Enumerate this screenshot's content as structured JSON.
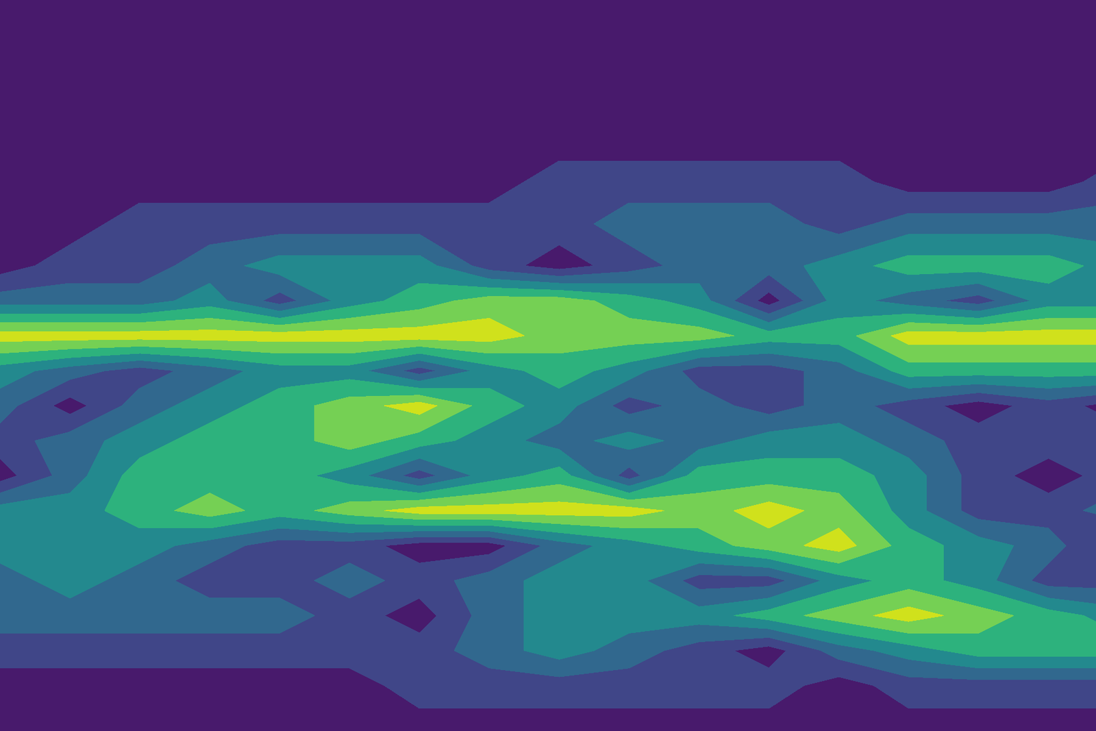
{
  "chart_data": {
    "type": "contourf",
    "tick_labels": false,
    "xlim": [
      0,
      1568
    ],
    "ylim": [
      0,
      1045
    ],
    "levels": [
      0,
      1,
      2,
      3,
      4,
      5,
      6,
      7
    ],
    "colors": [
      "#481a6c",
      "#404688",
      "#31688e",
      "#23898e",
      "#2db27d",
      "#75d054",
      "#d0e11c"
    ],
    "x": [
      0,
      100,
      200,
      300,
      400,
      500,
      600,
      700,
      800,
      900,
      1000,
      1100,
      1200,
      1300,
      1400,
      1500,
      1600
    ],
    "y": [
      1045,
      925,
      845,
      785,
      725,
      665,
      615,
      565,
      515,
      465,
      415,
      365,
      315,
      265,
      215,
      165,
      115,
      65,
      0
    ],
    "cells": [
      [
        0.5,
        0.5,
        0.5,
        0.5,
        0.5,
        0.5,
        0.5,
        0.5,
        0.5,
        0.5,
        0.5,
        0.5,
        0.5,
        0.5,
        0.5,
        0.5,
        0.5
      ],
      [
        0.5,
        0.5,
        0.5,
        0.5,
        0.5,
        0.5,
        0.5,
        0.5,
        0.5,
        0.5,
        0.5,
        0.5,
        0.5,
        0.5,
        0.5,
        0.5,
        0.5
      ],
      [
        0.5,
        0.5,
        0.5,
        0.5,
        0.5,
        0.5,
        0.5,
        0.5,
        0.5,
        0.5,
        0.5,
        0.5,
        0.5,
        0.5,
        0.5,
        0.5,
        0.5
      ],
      [
        0.5,
        0.5,
        0.5,
        0.5,
        0.5,
        0.5,
        0.5,
        0.5,
        1.5,
        1.5,
        1.5,
        1.5,
        1.5,
        0.5,
        0.5,
        0.5,
        1.5
      ],
      [
        0.5,
        0.5,
        1.5,
        1.5,
        1.5,
        1.5,
        1.5,
        1.5,
        1.5,
        2.5,
        2.5,
        2.5,
        1.5,
        2.5,
        2.5,
        2.5,
        2.5
      ],
      [
        0.5,
        1.5,
        1.5,
        2.5,
        3.5,
        3.5,
        3.5,
        1.5,
        0.5,
        1.5,
        2.5,
        2.5,
        3.5,
        4.5,
        4.5,
        4.5,
        3.5
      ],
      [
        2.5,
        2.5,
        2.5,
        3.5,
        1.5,
        3.5,
        4.5,
        5.5,
        5.5,
        4.5,
        3.5,
        0.5,
        3.5,
        2.5,
        1.5,
        3.5,
        3.5
      ],
      [
        6.5,
        6.5,
        6.5,
        6.5,
        6.5,
        6.5,
        6.5,
        6.5,
        5.5,
        5.5,
        5.5,
        4.5,
        4.5,
        6.5,
        6.5,
        6.5,
        6.5
      ],
      [
        3.5,
        2.5,
        1.5,
        2.5,
        3.5,
        3.5,
        1.5,
        3.5,
        4.5,
        3.5,
        1.5,
        1.5,
        2.5,
        4.5,
        4.5,
        4.5,
        4.5
      ],
      [
        2.5,
        0.5,
        2.5,
        3.5,
        4.5,
        5.5,
        6.5,
        4.5,
        3.5,
        1.5,
        2.5,
        1.5,
        2.5,
        1.5,
        0.5,
        1.5,
        0.5
      ],
      [
        1.5,
        2.5,
        3.5,
        4.5,
        4.5,
        5.5,
        4.5,
        3.5,
        2.5,
        3.5,
        2.5,
        3.5,
        3.5,
        2.5,
        1.5,
        1.5,
        1.5
      ],
      [
        0.5,
        2.5,
        4.5,
        4.5,
        4.5,
        3.5,
        1.5,
        3.5,
        4.5,
        1.5,
        4.5,
        4.5,
        4.5,
        3.5,
        1.5,
        0.5,
        1.5
      ],
      [
        3.5,
        3.5,
        4.5,
        5.5,
        4.5,
        5.5,
        6.5,
        6.5,
        6.5,
        6.5,
        5.5,
        6.5,
        5.5,
        3.5,
        1.5,
        1.5,
        2.5
      ],
      [
        3.5,
        3.5,
        3.5,
        2.5,
        1.5,
        1.5,
        0.5,
        0.5,
        2.5,
        3.5,
        4.5,
        5.5,
        6.5,
        4.5,
        3.5,
        2.5,
        0.5
      ],
      [
        2.5,
        3.5,
        2.5,
        1.5,
        1.5,
        2.5,
        1.5,
        2.5,
        3.5,
        3.5,
        1.5,
        1.5,
        3.5,
        4.5,
        3.5,
        1.5,
        1.5
      ],
      [
        2.5,
        2.5,
        2.5,
        2.5,
        2.5,
        1.5,
        0.5,
        2.5,
        3.5,
        3.5,
        3.5,
        4.5,
        5.5,
        6.5,
        5.5,
        4.5,
        3.5
      ],
      [
        1.5,
        1.5,
        1.5,
        1.5,
        1.5,
        1.5,
        1.5,
        2.5,
        3.5,
        2.5,
        1.5,
        0.5,
        2.5,
        3.5,
        4.5,
        4.5,
        4.5
      ],
      [
        0.5,
        0.5,
        0.5,
        0.5,
        0.5,
        0.5,
        1.5,
        1.5,
        1.5,
        1.5,
        1.5,
        1.5,
        0.5,
        1.5,
        1.5,
        1.5,
        1.5
      ],
      [
        0.5,
        0.5,
        0.5,
        0.5,
        0.5,
        0.5,
        0.5,
        0.5,
        0.5,
        0.5,
        0.5,
        0.5,
        0.5,
        0.5,
        0.5,
        0.5,
        0.5
      ]
    ]
  }
}
